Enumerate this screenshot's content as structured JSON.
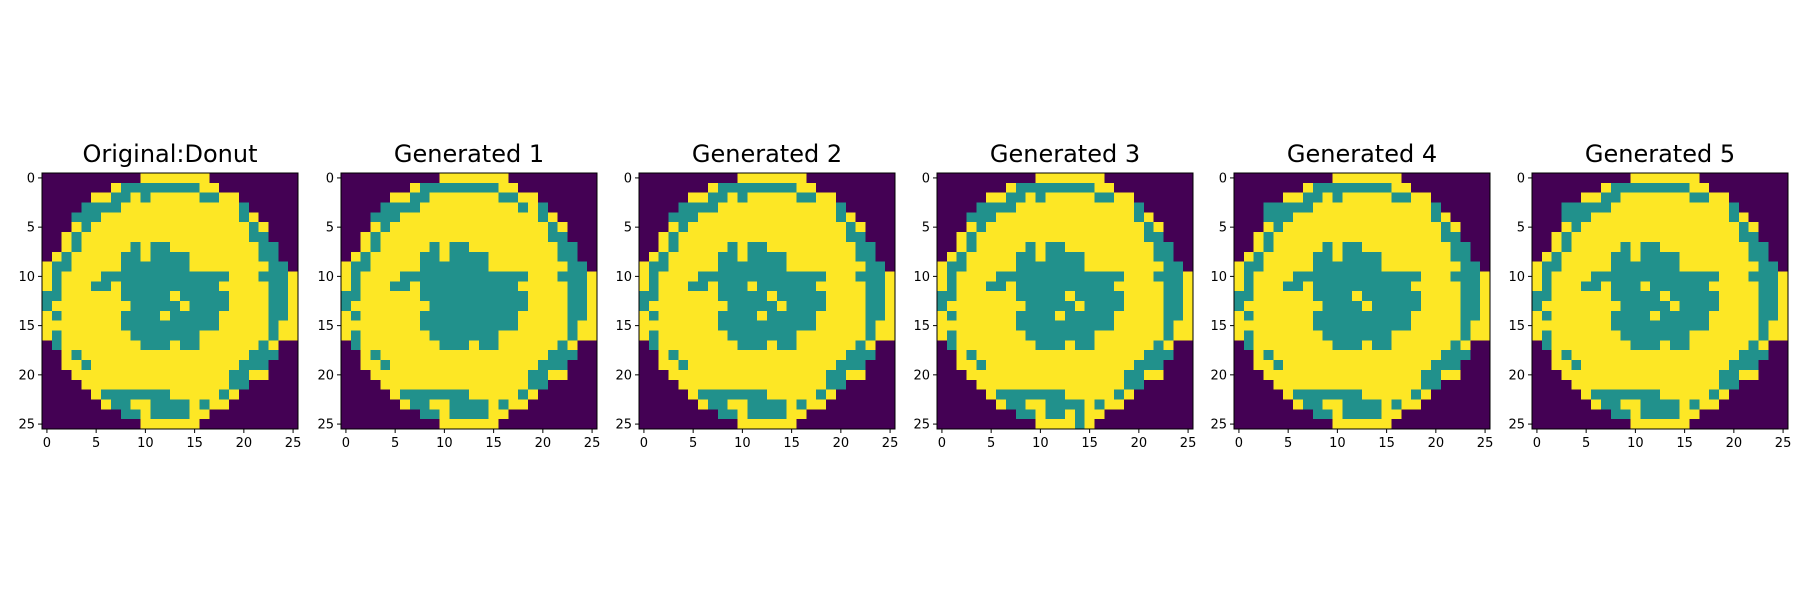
{
  "chart_data": {
    "type": "heatmap",
    "grid_size": [
      26,
      26
    ],
    "colormap": {
      "0": "#440154",
      "1": "#21918c",
      "2": "#fde725"
    },
    "x_ticks": [
      0,
      5,
      10,
      15,
      20,
      25
    ],
    "y_ticks": [
      0,
      5,
      10,
      15,
      20,
      25
    ],
    "xlim": [
      -0.5,
      25.5
    ],
    "ylim": [
      25.5,
      -0.5
    ],
    "grid": false,
    "panels": [
      {
        "title": "Original:Donut",
        "matrix": [
          "00000000002222222000000000",
          "00000002111111112200000000",
          "00000221121222221122000000",
          "00001111222222222222100000",
          "00011122222222222222120000",
          "00021222222222222222212000",
          "00212222222222222222211000",
          "00212222212112222222221100",
          "02122222112111122222221100",
          "21122222111111122222222110",
          "21222211111111111112221112",
          "21222112111111111122222112",
          "11222222111112111112222112",
          "12222222211111211112222112",
          "21222222111121111122222112",
          "22222222111111111122222122",
          "21222222211111112222222122",
          "01222222221112112222221200",
          "00212222222222222222211100",
          "00221222222222222222111000",
          "00022222222222222221122000",
          "00002222222222222221100000",
          "00000211111112222212000000",
          "00000021122111121220000000",
          "00000000112111122000000000",
          "00000000002222220000000000"
        ]
      },
      {
        "title": "Generated 1",
        "matrix": [
          "00000000002222222000000000",
          "00000002111111112200000000",
          "00000221122222221122000000",
          "00001111222222222212100000",
          "00011122222222222222120000",
          "00021222222222222222212000",
          "00212222222222222222211000",
          "00212222212112222222221100",
          "02122222112111122222221100",
          "21122222111111122222222110",
          "21222211111111111112221112",
          "21222112111111111122222112",
          "11222222111111111112222112",
          "12222222211111111112222112",
          "21222222111111111122222112",
          "22222222111111111122222122",
          "21222222211111112222222122",
          "01222222221112112222221200",
          "00212222222222222222211100",
          "00221222222222222222111000",
          "00022222222222222221122000",
          "00002222222222222221100000",
          "00000211111112222212000000",
          "00000021122111121220000000",
          "00000000112111122000000000",
          "00000000002222220000000000"
        ]
      },
      {
        "title": "Generated 2",
        "matrix": [
          "00000000002222222000000000",
          "00000002111111112200000000",
          "00000221121222221122000000",
          "00001111222222222222100000",
          "00011122222222222222120000",
          "00021222222222222222212000",
          "00212222222222222222211000",
          "00212222212112222222221100",
          "02122222112111122222221100",
          "21122222111111122222222110",
          "21222211111111111112221112",
          "21222112111211111122222112",
          "11222222111112111112222112",
          "12222222211111211112222112",
          "21222222111121111122222112",
          "22222222111111111122222122",
          "21222222211111112222222122",
          "01222222221112112222221200",
          "00212222222222222222211100",
          "00221222222222222222111000",
          "00022222222222222221122000",
          "00002222222222222221100000",
          "00000211111112222212000000",
          "00000021122111121220000000",
          "00000000112111122000000000",
          "00000000002222220000000000"
        ]
      },
      {
        "title": "Generated 3",
        "matrix": [
          "00000000002222222000000000",
          "00000002111111112200000000",
          "00000221121222221122000000",
          "00001111222222222222100000",
          "00011122222222222222120000",
          "00021222222222222222212000",
          "00212222222222222222211000",
          "00212222212112222222221100",
          "02122222112111122222221100",
          "21122222111111122222222110",
          "21222211111111111112221112",
          "21222112111111111122222112",
          "11222222111112111112222112",
          "12222222211111211112222112",
          "21222222111121111122222112",
          "22222222111111111122222122",
          "21222222211111112222222122",
          "01222222221112112222221200",
          "00212222222222222222211100",
          "00221222222222222222111000",
          "00022222222222222221122000",
          "00002222222222222221100000",
          "00000211111112222212000000",
          "00000021122111121220000000",
          "00000000112112122000000000",
          "00000000002222120000000000"
        ]
      },
      {
        "title": "Generated 4",
        "matrix": [
          "00000000002222222000000000",
          "00000002111111112200000000",
          "00000221121222221122000000",
          "00011111222222222222100000",
          "00011122222222222222120000",
          "00021222222222222222212000",
          "00212222222222222222211000",
          "00212222212112222222221100",
          "02122222112111122222221100",
          "21122222111111122222222110",
          "21222211111111111112221112",
          "21222112111111111122222112",
          "11222222111121111112222112",
          "12222222211112111112222112",
          "21222222111111111122222112",
          "22222222111111111122222122",
          "21222222211111112222222122",
          "01222222221112112222221200",
          "00212222222222222222211100",
          "00221222222222222222111000",
          "00022222222222222221122000",
          "00002222222222222221100000",
          "00000211111112222212000000",
          "00000021122111121220000000",
          "00000000112111122000000000",
          "00000000002222220000000000"
        ]
      },
      {
        "title": "Generated 5",
        "matrix": [
          "00000000002222222000000000",
          "00000002111111112200000000",
          "00000221122222221122000000",
          "00011111222222222222100000",
          "00011122222222222222120000",
          "00021222222222222222212000",
          "00212222222222222222211000",
          "00212222212112222222221100",
          "02122222112111122222221100",
          "21122222111111122222222110",
          "21222211111111111112221112",
          "21222112111211111122222112",
          "11222222111112111112222112",
          "12222222211111211112222112",
          "21222222111121111122222112",
          "22222222111111111122222122",
          "21222222211111112222222122",
          "01222222221112112222221200",
          "00212222222222222222211100",
          "00221222222222222222111000",
          "00022222222222222221122000",
          "00002222222222222221100000",
          "00000211111112222212000000",
          "00000021122111121220000000",
          "00000000112111122000000000",
          "00000000002222220000000000"
        ]
      }
    ]
  }
}
